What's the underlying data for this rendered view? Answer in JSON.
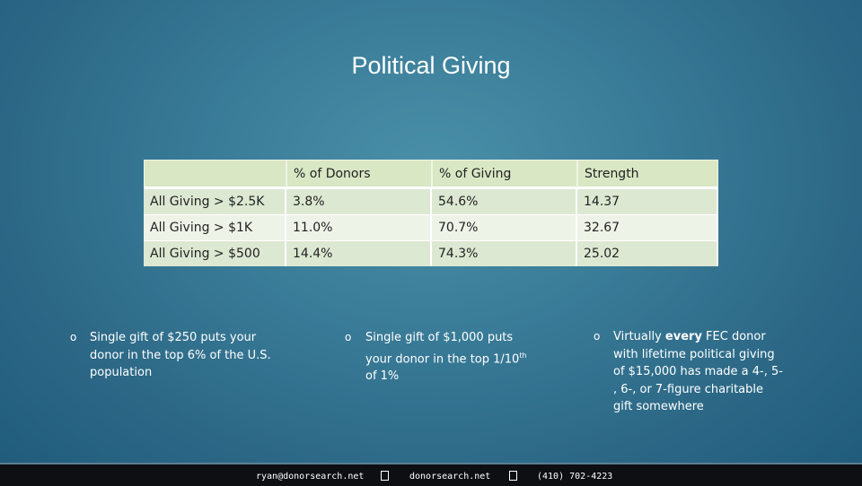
{
  "title": "Political Giving",
  "table": {
    "headers": [
      "",
      "% of Donors",
      "% of Giving",
      "Strength"
    ],
    "rows": [
      [
        "All Giving > $2.5K",
        "3.8%",
        "54.6%",
        "14.37"
      ],
      [
        "All Giving > $1K",
        "11.0%",
        "70.7%",
        "32.67"
      ],
      [
        "All Giving > $500",
        "14.4%",
        "74.3%",
        "25.02"
      ]
    ]
  },
  "bullets": {
    "left": {
      "mark": "o",
      "lines": [
        "Single gift of $250 puts your",
        "donor in the top 6% of the U.S.",
        "population"
      ]
    },
    "middle": {
      "mark": "o",
      "line1": "Single gift of $1,000 puts",
      "line2_pre": "your donor in the top 1/10",
      "line2_sup": "th",
      "line3": "of 1%"
    },
    "right": {
      "mark": "o",
      "line1_pre": "Virtually ",
      "line1_bold": "every",
      "line1_post": " FEC donor",
      "lines": [
        "with lifetime political giving",
        "of $15,000 has made a 4-, 5-",
        ", 6-, or 7-figure charitable",
        "gift somewhere"
      ]
    }
  },
  "footer": {
    "email": "ryan@donorsearch.net",
    "website": "donorsearch.net",
    "phone": "(410) 702-4223"
  },
  "colors": {
    "background": "#3a7d99",
    "table_header": "#d9e7c4",
    "table_row": "#dde8d2",
    "footer": "#0d0f12"
  }
}
